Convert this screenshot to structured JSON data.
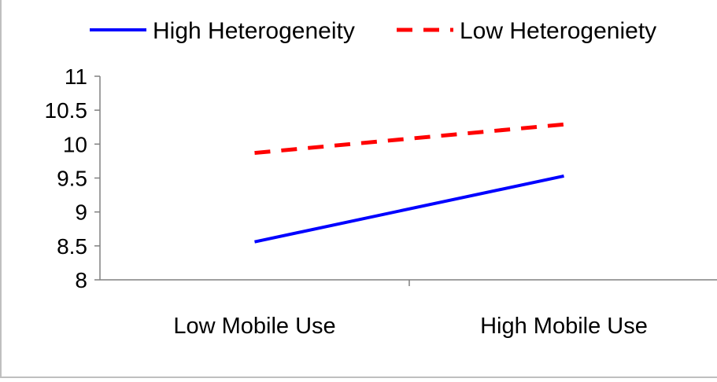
{
  "chart_data": {
    "type": "line",
    "title": "",
    "xlabel": "",
    "ylabel": "",
    "categories": [
      "Low Mobile Use",
      "High Mobile Use"
    ],
    "series": [
      {
        "name": "High Heterogeneity",
        "values": [
          8.56,
          9.53
        ],
        "color": "#0000ff",
        "dash": "solid"
      },
      {
        "name": "Low Heterogeniety",
        "values": [
          9.87,
          10.29
        ],
        "color": "#ff0000",
        "dash": "dashed"
      }
    ],
    "ylim": [
      8,
      11
    ],
    "yticks": [
      "8",
      "8.5",
      "9",
      "9.5",
      "10",
      "10.5",
      "11"
    ],
    "grid": false,
    "legend_position": "top"
  }
}
